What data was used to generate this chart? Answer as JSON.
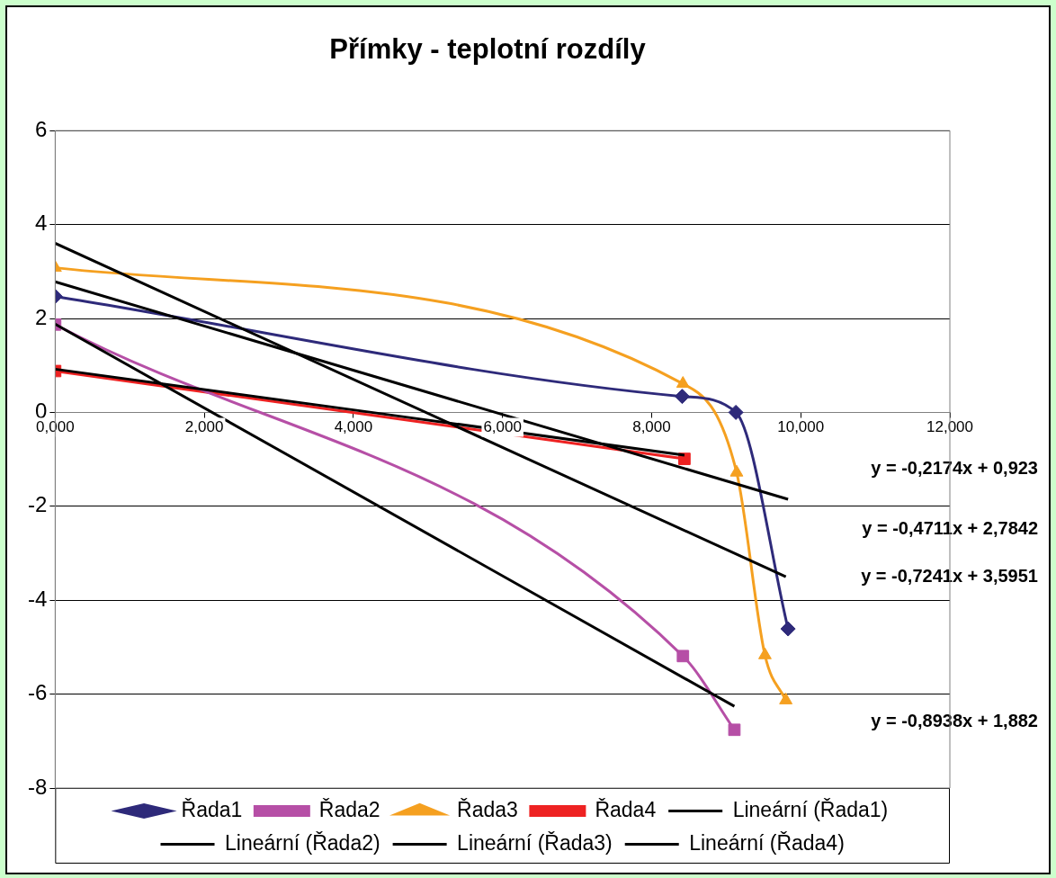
{
  "chart_data": {
    "type": "line",
    "title": "Přímky - teplotní rozdíly",
    "xlim": [
      0,
      12
    ],
    "xticks": [
      {
        "value": 0,
        "label": "0,000"
      },
      {
        "value": 2,
        "label": "2,000"
      },
      {
        "value": 4,
        "label": "4,000"
      },
      {
        "value": 6,
        "label": "6,000"
      },
      {
        "value": 8,
        "label": "8,000"
      },
      {
        "value": 10,
        "label": "10,000"
      },
      {
        "value": 12,
        "label": "12,000"
      }
    ],
    "ylim": [
      -8,
      6
    ],
    "yticks": [
      -8,
      -6,
      -4,
      -2,
      0,
      2,
      4,
      6
    ],
    "grid": "y",
    "legend": "bottom",
    "series": [
      {
        "name": "Řada1",
        "color": "#2e2a7a",
        "marker": "diamond",
        "x": [
          0,
          8.41,
          9.13,
          9.83
        ],
        "values": [
          2.47,
          0.34,
          0,
          -4.61
        ]
      },
      {
        "name": "Řada2",
        "color": "#b64fa6",
        "marker": "square",
        "x": [
          0,
          8.42,
          9.11
        ],
        "values": [
          1.87,
          -5.19,
          -6.76
        ]
      },
      {
        "name": "Řada3",
        "color": "#f5a020",
        "marker": "triangle",
        "x": [
          0,
          8.42,
          9.14,
          9.52,
          9.8
        ],
        "values": [
          3.08,
          0.61,
          -1.28,
          -5.17,
          -6.13
        ]
      },
      {
        "name": "Řada4",
        "color": "#ee2222",
        "marker": "square",
        "x": [
          0,
          8.44
        ],
        "values": [
          0.88,
          -0.99
        ]
      },
      {
        "name": "Lineární (Řada1)",
        "color": "#000000",
        "marker": "none",
        "x": [
          0,
          9.83
        ],
        "values": [
          2.78,
          -1.85
        ]
      },
      {
        "name": "Lineární (Řada2)",
        "color": "#000000",
        "marker": "none",
        "x": [
          0,
          9.11
        ],
        "values": [
          1.88,
          -6.26
        ]
      },
      {
        "name": "Lineární (Řada3)",
        "color": "#000000",
        "marker": "none",
        "x": [
          0,
          9.8
        ],
        "values": [
          3.6,
          -3.5
        ]
      },
      {
        "name": "Lineární (Řada4)",
        "color": "#000000",
        "marker": "none",
        "x": [
          0,
          8.44
        ],
        "values": [
          0.92,
          -0.91
        ]
      }
    ],
    "annotations": [
      "y = -0,2174x + 0,923",
      "y = -0,4711x + 2,7842",
      "y = -0,7241x + 3,5951",
      "y = -0,8938x + 1,882"
    ]
  }
}
